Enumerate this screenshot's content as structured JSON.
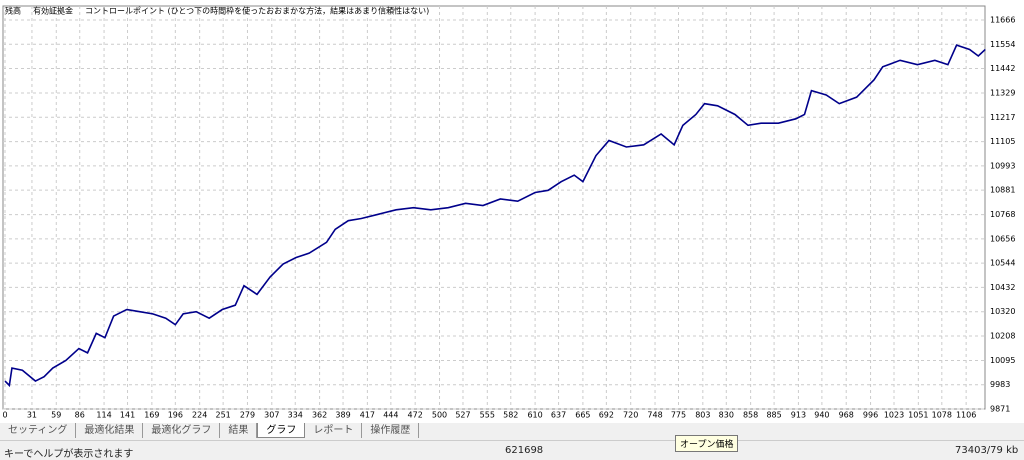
{
  "chart_data": {
    "type": "line",
    "legend": [
      {
        "text": "残高",
        "color": "#0000c0"
      },
      {
        "text": "有効証拠金",
        "color": "#00a000"
      },
      {
        "text": "コントロールポイント (ひとつ下の時間枠を使ったおおまかな方法，結果はあまり信頼性はない)",
        "color": "#e00000"
      }
    ],
    "x": [
      0,
      5,
      8,
      20,
      35,
      45,
      55,
      70,
      85,
      95,
      105,
      115,
      125,
      140,
      155,
      170,
      185,
      196,
      205,
      220,
      235,
      250,
      265,
      275,
      290,
      305,
      320,
      335,
      350,
      370,
      380,
      395,
      410,
      430,
      450,
      470,
      490,
      510,
      530,
      550,
      570,
      590,
      610,
      625,
      640,
      655,
      665,
      680,
      695,
      715,
      735,
      755,
      770,
      780,
      795,
      805,
      820,
      840,
      855,
      870,
      890,
      910,
      920,
      928,
      945,
      960,
      980,
      1000,
      1010,
      1030,
      1050,
      1070,
      1085,
      1095,
      1110,
      1120,
      1128
    ],
    "series": [
      {
        "name": "残高",
        "color": "#00008b",
        "values": [
          10000,
          9980,
          10060,
          10050,
          10000,
          10020,
          10060,
          10095,
          10150,
          10130,
          10220,
          10200,
          10300,
          10330,
          10320,
          10310,
          10290,
          10260,
          10310,
          10320,
          10290,
          10330,
          10350,
          10440,
          10400,
          10480,
          10540,
          10570,
          10590,
          10640,
          10700,
          10740,
          10750,
          10770,
          10790,
          10800,
          10790,
          10800,
          10820,
          10810,
          10840,
          10830,
          10870,
          10880,
          10920,
          10950,
          10920,
          11040,
          11110,
          11080,
          11090,
          11140,
          11090,
          11180,
          11230,
          11280,
          11270,
          11230,
          11180,
          11190,
          11190,
          11210,
          11230,
          11340,
          11320,
          11280,
          11310,
          11390,
          11450,
          11480,
          11460,
          11480,
          11460,
          11550,
          11530,
          11500,
          11530
        ]
      }
    ],
    "xlim": [
      0,
      1130
    ],
    "xticks": [
      0,
      31,
      59,
      86,
      114,
      141,
      169,
      196,
      224,
      251,
      279,
      307,
      334,
      362,
      389,
      417,
      444,
      472,
      500,
      527,
      555,
      582,
      610,
      637,
      665,
      692,
      720,
      748,
      775,
      803,
      830,
      858,
      885,
      913,
      940,
      968,
      996,
      1023,
      1051,
      1078,
      1106
    ],
    "ylim": [
      9871,
      11666
    ],
    "yticks": [
      11666,
      11554,
      11442,
      11329,
      11217,
      11105,
      10993,
      10881,
      10768,
      10656,
      10544,
      10432,
      10320,
      10208,
      10095,
      9983,
      9871
    ],
    "grid": true
  },
  "tabs": [
    "セッティング",
    "最適化結果",
    "最適化グラフ",
    "結果",
    "グラフ",
    "レポート",
    "操作履歴"
  ],
  "active_tab": 4,
  "status": {
    "help": "キーでヘルプが表示されます",
    "code": "621698",
    "tooltip": "オープン価格",
    "memory": "73403/79 kb"
  }
}
